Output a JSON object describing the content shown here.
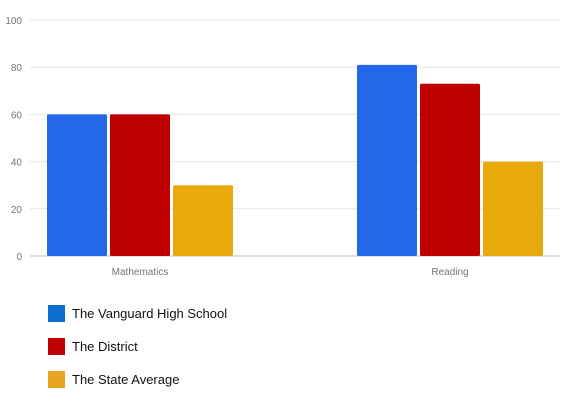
{
  "chart_data": {
    "type": "bar",
    "categories": [
      "Mathematics",
      "Reading"
    ],
    "series": [
      {
        "name": "The Vanguard High School",
        "values": [
          60,
          81
        ],
        "color": "#2467e8",
        "legend_color": "#0a6fcf"
      },
      {
        "name": "The District",
        "values": [
          60,
          73
        ],
        "color": "#bf0000",
        "legend_color": "#c00000"
      },
      {
        "name": "The State Average",
        "values": [
          30,
          40
        ],
        "color": "#e8a90c",
        "legend_color": "#e6a420"
      }
    ],
    "ylim": [
      0,
      100
    ],
    "yticks": [
      "0",
      "20",
      "40",
      "60",
      "80",
      "100"
    ],
    "grid": true,
    "legend_position": "bottom-left",
    "title": "",
    "xlabel": "",
    "ylabel": ""
  }
}
